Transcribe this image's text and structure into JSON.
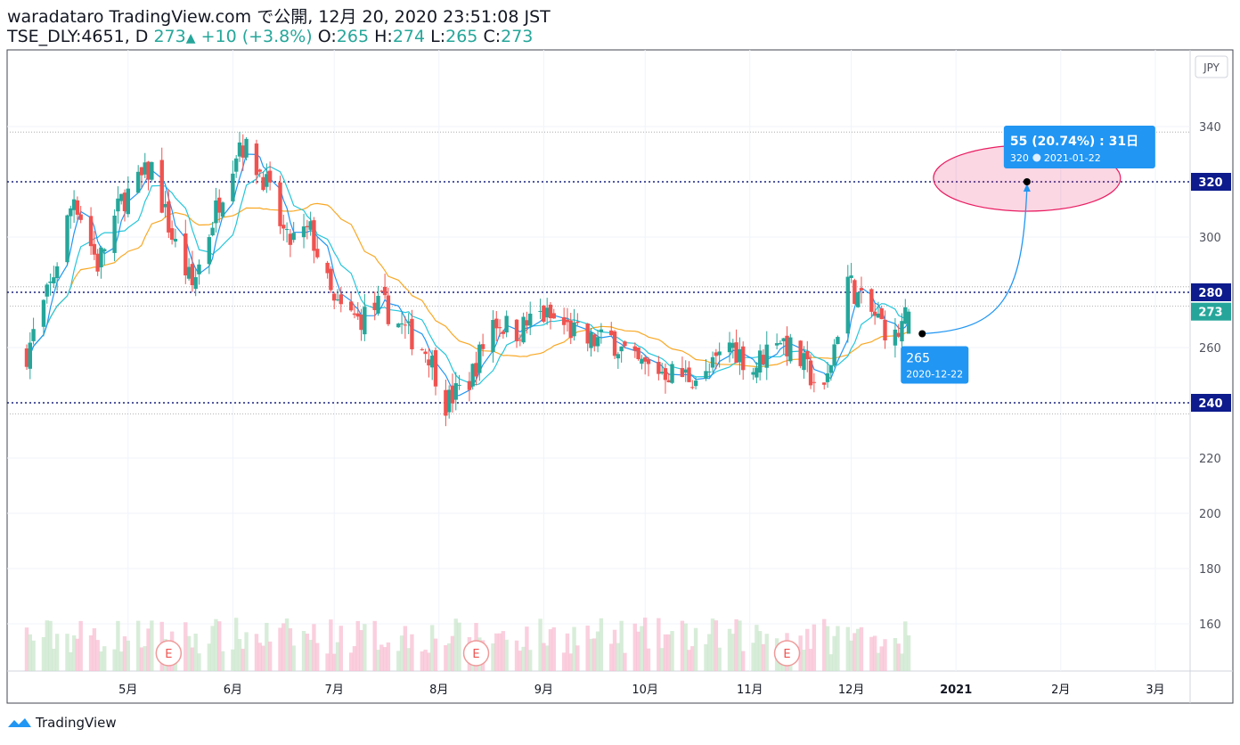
{
  "header": {
    "publish": "waradataro TradingView.com で公開, 12月 20, 2020 23:51:08 JST",
    "symbol": "TSE_DLY:4651, D",
    "last": "273",
    "change": "+10 (+3.8%)",
    "open_label": "O:",
    "open": "265",
    "high_label": "H:",
    "high": "274",
    "low_label": "L:",
    "low": "265",
    "close_label": "C:",
    "close": "273"
  },
  "brand": "TradingView",
  "colors": {
    "up": "#26a69a",
    "down": "#ef5350",
    "ma_fast": "#2196f3",
    "ma_mid": "#26c6da",
    "ma_slow": "#f9a825",
    "level": "#1a237e",
    "accent": "#2196f3",
    "ellipse": "#e91e63"
  },
  "chart_data": {
    "type": "candlestick",
    "currency": "JPY",
    "ylim": [
      145,
      345
    ],
    "y_ticks": [
      160,
      180,
      200,
      220,
      240,
      260,
      280,
      300,
      320,
      340
    ],
    "x_ticks": [
      {
        "label": "5月",
        "date": "2020-05-01"
      },
      {
        "label": "6月",
        "date": "2020-06-01"
      },
      {
        "label": "7月",
        "date": "2020-07-01"
      },
      {
        "label": "8月",
        "date": "2020-08-01"
      },
      {
        "label": "9月",
        "date": "2020-09-01"
      },
      {
        "label": "10月",
        "date": "2020-10-01"
      },
      {
        "label": "11月",
        "date": "2020-11-01"
      },
      {
        "label": "12月",
        "date": "2020-12-01"
      },
      {
        "label": "2021",
        "date": "2021-01-01"
      },
      {
        "label": "2月",
        "date": "2021-02-01"
      },
      {
        "label": "3月",
        "date": "2021-03-01"
      }
    ],
    "horizontal_levels": [
      320,
      280,
      240
    ],
    "level_labels": [
      "320",
      "280",
      "240"
    ],
    "last_price": 273,
    "last_price_label": "273",
    "earnings_markers": [
      {
        "label": "E",
        "date": "2020-05-13"
      },
      {
        "label": "E",
        "date": "2020-08-12"
      },
      {
        "label": "E",
        "date": "2020-11-12"
      }
    ],
    "projection": {
      "start_price": 265,
      "start_price_label": "265",
      "start_date": "2020-12-22",
      "end_price": 320,
      "end_price_label": "320",
      "end_date": "2021-01-22",
      "summary": "55 (20.74%)  :  31日"
    },
    "ohlc_waypoints": [
      {
        "date": "2020-04-01",
        "close": 258
      },
      {
        "date": "2020-04-08",
        "close": 282
      },
      {
        "date": "2020-04-15",
        "close": 315
      },
      {
        "date": "2020-04-22",
        "close": 290
      },
      {
        "date": "2020-04-29",
        "close": 313
      },
      {
        "date": "2020-05-08",
        "close": 325
      },
      {
        "date": "2020-05-14",
        "close": 300
      },
      {
        "date": "2020-05-20",
        "close": 282
      },
      {
        "date": "2020-05-27",
        "close": 310
      },
      {
        "date": "2020-06-03",
        "close": 335
      },
      {
        "date": "2020-06-10",
        "close": 322
      },
      {
        "date": "2020-06-17",
        "close": 298
      },
      {
        "date": "2020-06-24",
        "close": 302
      },
      {
        "date": "2020-07-01",
        "close": 275
      },
      {
        "date": "2020-07-08",
        "close": 270
      },
      {
        "date": "2020-07-15",
        "close": 276
      },
      {
        "date": "2020-07-22",
        "close": 266
      },
      {
        "date": "2020-07-29",
        "close": 258
      },
      {
        "date": "2020-08-03",
        "close": 240
      },
      {
        "date": "2020-08-10",
        "close": 248
      },
      {
        "date": "2020-08-17",
        "close": 270
      },
      {
        "date": "2020-08-24",
        "close": 266
      },
      {
        "date": "2020-08-31",
        "close": 272
      },
      {
        "date": "2020-09-07",
        "close": 268
      },
      {
        "date": "2020-09-14",
        "close": 262
      },
      {
        "date": "2020-09-21",
        "close": 263
      },
      {
        "date": "2020-09-28",
        "close": 254
      },
      {
        "date": "2020-10-05",
        "close": 252
      },
      {
        "date": "2020-10-12",
        "close": 250
      },
      {
        "date": "2020-10-19",
        "close": 249
      },
      {
        "date": "2020-10-26",
        "close": 262
      },
      {
        "date": "2020-11-02",
        "close": 252
      },
      {
        "date": "2020-11-09",
        "close": 265
      },
      {
        "date": "2020-11-16",
        "close": 255
      },
      {
        "date": "2020-11-23",
        "close": 243
      },
      {
        "date": "2020-11-30",
        "close": 285
      },
      {
        "date": "2020-12-04",
        "close": 276
      },
      {
        "date": "2020-12-09",
        "close": 270
      },
      {
        "date": "2020-12-14",
        "close": 263
      },
      {
        "date": "2020-12-18",
        "close": 273
      }
    ]
  }
}
